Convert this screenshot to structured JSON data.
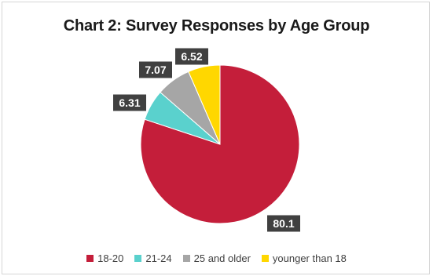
{
  "chart_data": {
    "type": "pie",
    "title": "Chart 2: Survey Responses by Age Group",
    "categories": [
      "18-20",
      "21-24",
      "25 and older",
      "younger than 18"
    ],
    "values": [
      80.1,
      6.31,
      7.07,
      6.52
    ],
    "data_labels": [
      "80.1",
      "6.31",
      "7.07",
      "6.52"
    ],
    "colors": [
      "#c41e3a",
      "#5ad1cd",
      "#a6a6a6",
      "#ffd700"
    ],
    "legend_position": "bottom"
  }
}
